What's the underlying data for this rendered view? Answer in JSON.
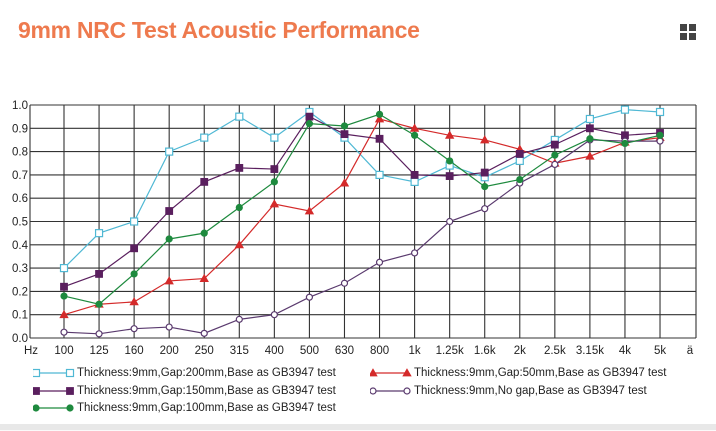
{
  "title": "9mm NRC Test Acoustic Performance",
  "menu_icon": "grid-icon",
  "chart_data": {
    "type": "line",
    "xlabel": "Hz",
    "x_end_label": "ä",
    "categories": [
      "100",
      "125",
      "160",
      "200",
      "250",
      "315",
      "400",
      "500",
      "630",
      "800",
      "1k",
      "1.25k",
      "1.6k",
      "2k",
      "2.5k",
      "3.15k",
      "4k",
      "5k"
    ],
    "ylim": [
      0,
      1.0
    ],
    "yticks": [
      "0.0",
      "0.1",
      "0.2",
      "0.3",
      "0.4",
      "0.5",
      "0.6",
      "0.7",
      "0.8",
      "0.9",
      "1.0"
    ],
    "grid": true,
    "legend_position": "bottom",
    "series": [
      {
        "name": "Thickness:9mm,Gap:200mm,Base as GB3947 test",
        "color": "#4fb8d4",
        "marker": "open-square",
        "values": [
          0.3,
          0.45,
          0.5,
          0.8,
          0.86,
          0.95,
          0.86,
          0.97,
          0.86,
          0.7,
          0.67,
          0.74,
          0.69,
          0.76,
          0.85,
          0.94,
          0.98,
          0.97
        ]
      },
      {
        "name": "Thickness:9mm,Gap:50mm,Base as GB3947 test",
        "color": "#d42a2a",
        "marker": "triangle",
        "values": [
          0.1,
          0.145,
          0.155,
          0.245,
          0.255,
          0.4,
          0.575,
          0.545,
          0.665,
          0.94,
          0.9,
          0.87,
          0.85,
          0.81,
          0.75,
          0.78,
          0.84,
          0.86
        ]
      },
      {
        "name": "Thickness:9mm,Gap:150mm,Base as GB3947 test",
        "color": "#5a1f5e",
        "marker": "square",
        "values": [
          0.22,
          0.275,
          0.385,
          0.545,
          0.67,
          0.73,
          0.725,
          0.95,
          0.875,
          0.855,
          0.7,
          0.695,
          0.71,
          0.79,
          0.83,
          0.9,
          0.87,
          0.88
        ]
      },
      {
        "name": "Thickness:9mm,No gap,Base as GB3947 test",
        "color": "#5a3a6e",
        "marker": "open-circle",
        "values": [
          0.025,
          0.018,
          0.04,
          0.047,
          0.02,
          0.08,
          0.1,
          0.175,
          0.235,
          0.325,
          0.365,
          0.5,
          0.555,
          0.665,
          0.745,
          0.85,
          0.845,
          0.845
        ]
      },
      {
        "name": "Thickness:9mm,Gap:100mm,Base as GB3947 test",
        "color": "#1e8a3e",
        "marker": "circle",
        "values": [
          0.18,
          0.145,
          0.275,
          0.425,
          0.45,
          0.56,
          0.67,
          0.92,
          0.91,
          0.96,
          0.87,
          0.76,
          0.65,
          0.68,
          0.785,
          0.855,
          0.835,
          0.87
        ]
      }
    ]
  }
}
